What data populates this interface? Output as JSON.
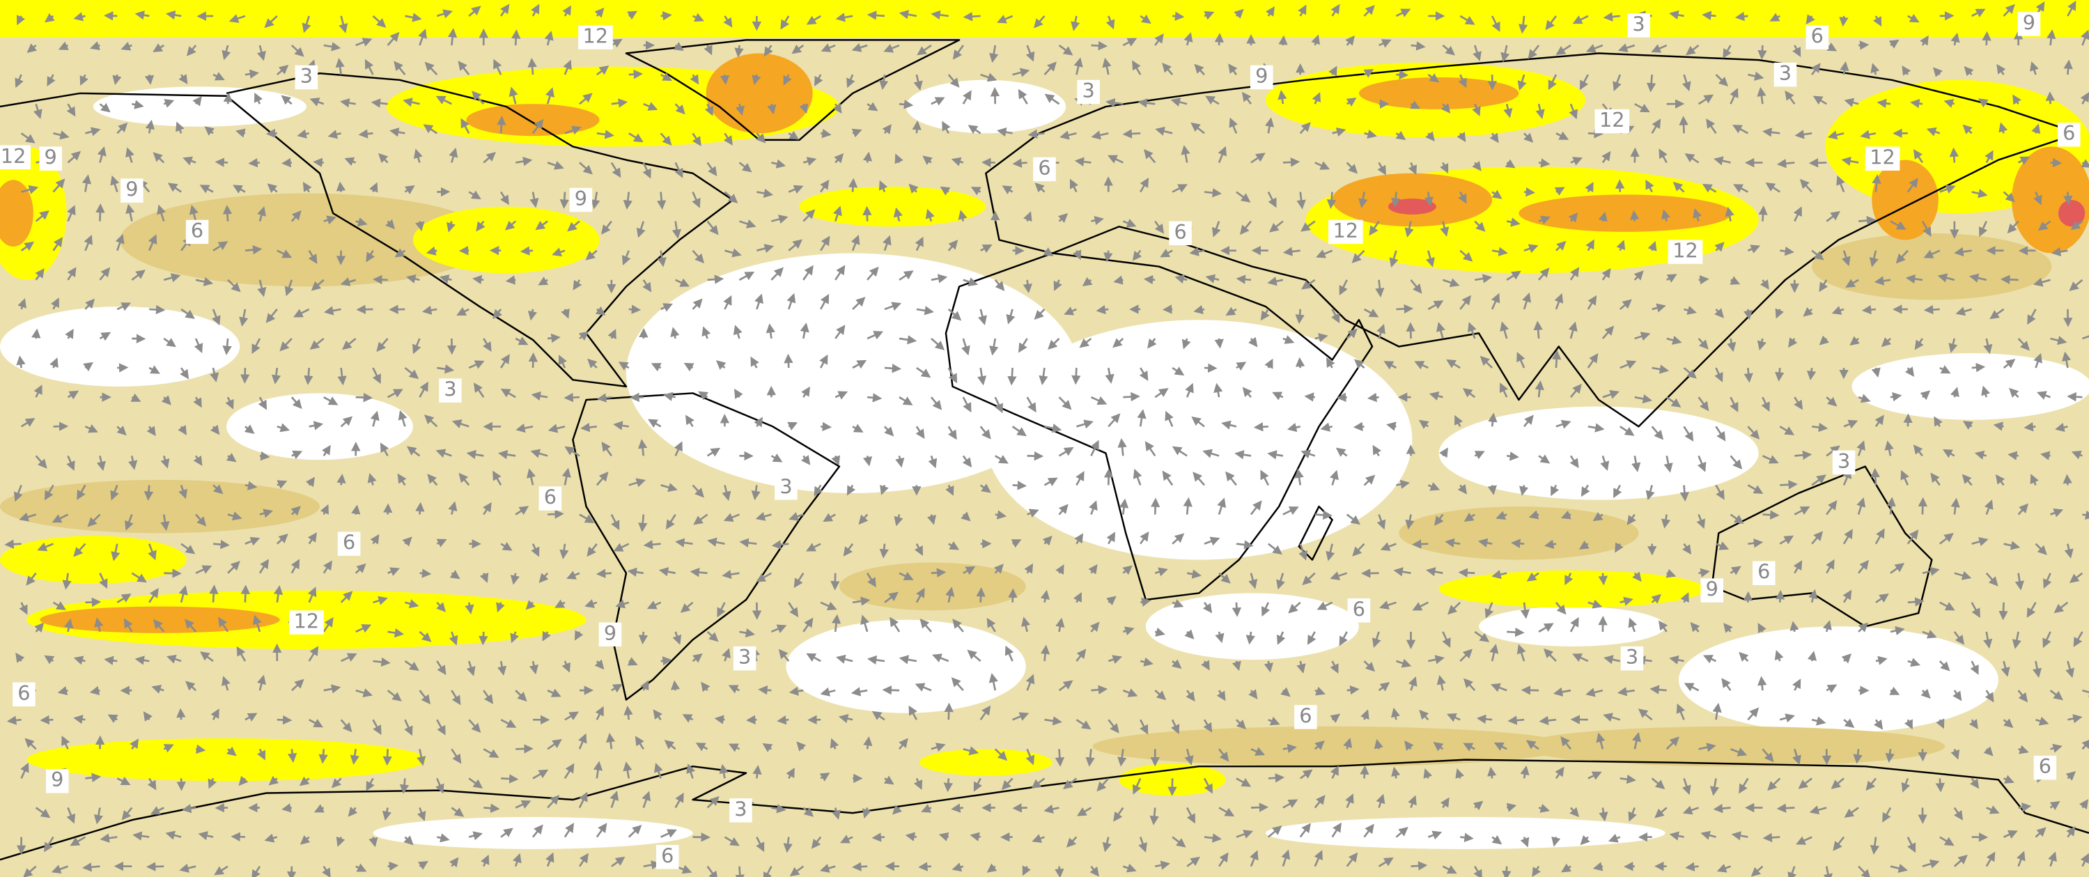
{
  "map": {
    "contour_labels": [
      "12",
      "3",
      "6",
      "9",
      "3",
      "3",
      "9",
      "3",
      "12",
      "9",
      "12",
      "12",
      "6",
      "9",
      "9",
      "6",
      "6",
      "12",
      "12",
      "6",
      "3",
      "3",
      "6",
      "3",
      "6",
      "12",
      "9",
      "9",
      "6",
      "6",
      "3",
      "3",
      "6",
      "6",
      "9",
      "6",
      "3",
      "6"
    ]
  }
}
